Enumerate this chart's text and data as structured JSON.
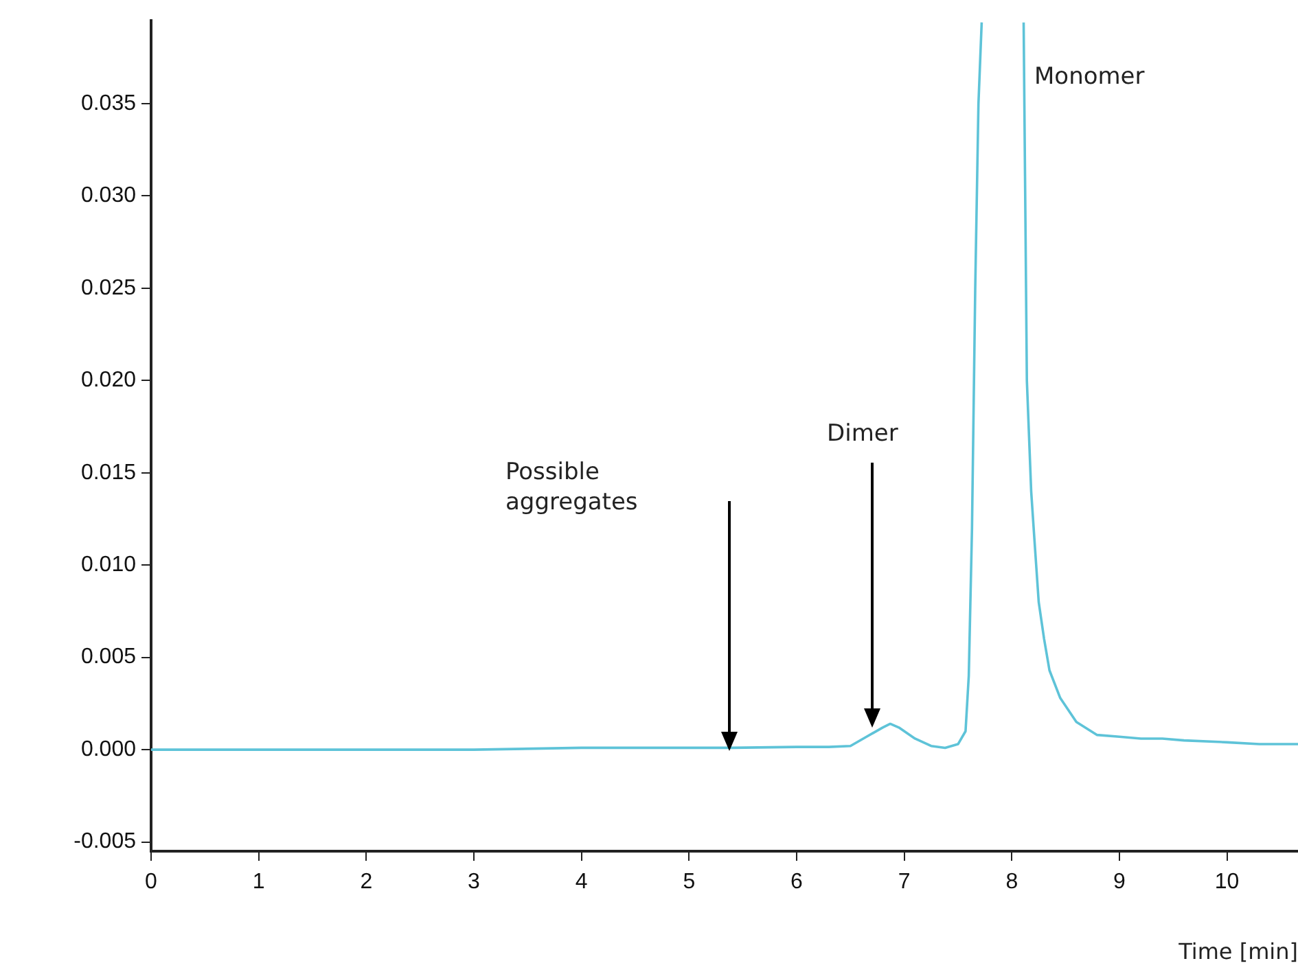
{
  "chart_data": {
    "type": "line",
    "xlabel": "Time [min]",
    "x": [
      0,
      1,
      2,
      3,
      4,
      5,
      5.4,
      6,
      6.3,
      6.5,
      6.65,
      6.8,
      6.87,
      6.95,
      7.1,
      7.25,
      7.38,
      7.5,
      7.57,
      7.6,
      7.63,
      7.66,
      7.69,
      7.72,
      7.9,
      8.11,
      8.14,
      8.18,
      8.21,
      8.25,
      8.3,
      8.35,
      8.45,
      8.6,
      8.79,
      9.0,
      9.2,
      9.4,
      9.6,
      10.0,
      10.3,
      10.66
    ],
    "series": [
      {
        "color": "#5ec3d8",
        "values": [
          0,
          0,
          0,
          0,
          0.0001,
          0.0001,
          0.0001,
          0.00015,
          0.00015,
          0.0002,
          0.0007,
          0.0012,
          0.0014,
          0.0012,
          0.0006,
          0.0002,
          0.0001,
          0.0003,
          0.001,
          0.004,
          0.012,
          0.025,
          0.035,
          0.0394,
          null,
          0.0394,
          0.02,
          0.014,
          0.0114,
          0.008,
          0.006,
          0.0043,
          0.0028,
          0.0015,
          0.0008,
          0.0007,
          0.0006,
          0.0006,
          0.0005,
          0.0004,
          0.0003,
          0.0003
        ]
      }
    ],
    "xlim": [
      0,
      10.66
    ],
    "xticks": [
      0,
      1,
      2,
      3,
      4,
      5,
      6,
      7,
      8,
      9,
      10
    ],
    "ylim": [
      -0.0055,
      0.0395
    ],
    "yticks": [
      {
        "value": -0.005,
        "label": "-0.005"
      },
      {
        "value": 0,
        "label": "0.000"
      },
      {
        "value": 0.005,
        "label": "0.005"
      },
      {
        "value": 0.01,
        "label": "0.010"
      },
      {
        "value": 0.015,
        "label": "0.015"
      },
      {
        "value": 0.02,
        "label": "0.020"
      },
      {
        "value": 0.025,
        "label": "0.025"
      },
      {
        "value": 0.03,
        "label": "0.030"
      },
      {
        "value": 0.035,
        "label": "0.035"
      }
    ],
    "annotations": [
      "Possible aggregates",
      "Dimer",
      "Monomer"
    ],
    "grid": false,
    "legend": false,
    "marker": "none",
    "line_style": "solid"
  }
}
